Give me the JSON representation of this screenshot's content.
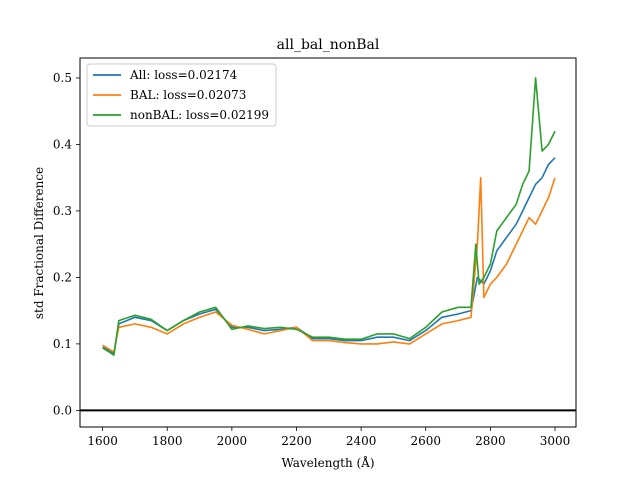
{
  "chart_data": {
    "type": "line",
    "title": "all_bal_nonBal",
    "xlabel": "Wavelength (Å)",
    "ylabel": "std Fractional Difference",
    "xlim": [
      1530,
      3065
    ],
    "ylim": [
      -0.025,
      0.53
    ],
    "xticks": [
      1600,
      1800,
      2000,
      2200,
      2400,
      2600,
      2800,
      3000
    ],
    "yticks": [
      0.0,
      0.1,
      0.2,
      0.3,
      0.4,
      0.5
    ],
    "xtick_labels": [
      "1600",
      "1800",
      "2000",
      "2200",
      "2400",
      "2600",
      "2800",
      "3000"
    ],
    "ytick_labels": [
      "0.0",
      "0.1",
      "0.2",
      "0.3",
      "0.4",
      "0.5"
    ],
    "grid": false,
    "legend_position": "top-left",
    "reference_line": {
      "y": 0.0,
      "color": "#000000"
    },
    "series": [
      {
        "name": "All: loss=0.02174",
        "color": "#1f77b4",
        "x": [
          1600,
          1620,
          1635,
          1650,
          1700,
          1750,
          1800,
          1850,
          1900,
          1950,
          2000,
          2050,
          2100,
          2150,
          2200,
          2250,
          2300,
          2350,
          2400,
          2450,
          2500,
          2550,
          2600,
          2650,
          2700,
          2740,
          2760,
          2780,
          2800,
          2820,
          2850,
          2880,
          2900,
          2920,
          2940,
          2960,
          2980,
          3000
        ],
        "values": [
          0.095,
          0.09,
          0.085,
          0.13,
          0.14,
          0.135,
          0.12,
          0.135,
          0.145,
          0.152,
          0.125,
          0.125,
          0.12,
          0.122,
          0.125,
          0.108,
          0.108,
          0.105,
          0.105,
          0.11,
          0.11,
          0.105,
          0.12,
          0.14,
          0.145,
          0.15,
          0.2,
          0.19,
          0.21,
          0.24,
          0.26,
          0.28,
          0.3,
          0.32,
          0.34,
          0.35,
          0.37,
          0.38
        ]
      },
      {
        "name": "BAL: loss=0.02073",
        "color": "#ff7f0e",
        "x": [
          1600,
          1620,
          1635,
          1650,
          1700,
          1750,
          1800,
          1850,
          1900,
          1950,
          2000,
          2050,
          2100,
          2150,
          2200,
          2250,
          2300,
          2350,
          2400,
          2450,
          2500,
          2550,
          2600,
          2650,
          2700,
          2740,
          2760,
          2770,
          2780,
          2800,
          2820,
          2850,
          2880,
          2900,
          2920,
          2940,
          2960,
          2980,
          3000
        ],
        "values": [
          0.098,
          0.092,
          0.088,
          0.125,
          0.13,
          0.125,
          0.115,
          0.13,
          0.14,
          0.148,
          0.128,
          0.122,
          0.115,
          0.12,
          0.125,
          0.105,
          0.105,
          0.102,
          0.1,
          0.1,
          0.103,
          0.1,
          0.115,
          0.13,
          0.135,
          0.14,
          0.25,
          0.35,
          0.17,
          0.19,
          0.2,
          0.22,
          0.25,
          0.27,
          0.29,
          0.28,
          0.3,
          0.32,
          0.35
        ]
      },
      {
        "name": "nonBAL: loss=0.02199",
        "color": "#2ca02c",
        "x": [
          1600,
          1620,
          1635,
          1650,
          1700,
          1750,
          1800,
          1850,
          1900,
          1950,
          2000,
          2050,
          2100,
          2150,
          2200,
          2250,
          2300,
          2350,
          2400,
          2450,
          2500,
          2550,
          2600,
          2650,
          2700,
          2740,
          2755,
          2765,
          2780,
          2800,
          2820,
          2850,
          2880,
          2900,
          2920,
          2940,
          2960,
          2980,
          3000
        ],
        "values": [
          0.094,
          0.088,
          0.083,
          0.135,
          0.143,
          0.137,
          0.12,
          0.135,
          0.148,
          0.155,
          0.122,
          0.127,
          0.123,
          0.125,
          0.122,
          0.11,
          0.11,
          0.107,
          0.107,
          0.115,
          0.115,
          0.108,
          0.125,
          0.148,
          0.155,
          0.155,
          0.25,
          0.19,
          0.2,
          0.22,
          0.27,
          0.29,
          0.31,
          0.34,
          0.36,
          0.5,
          0.39,
          0.4,
          0.42
        ]
      }
    ]
  }
}
